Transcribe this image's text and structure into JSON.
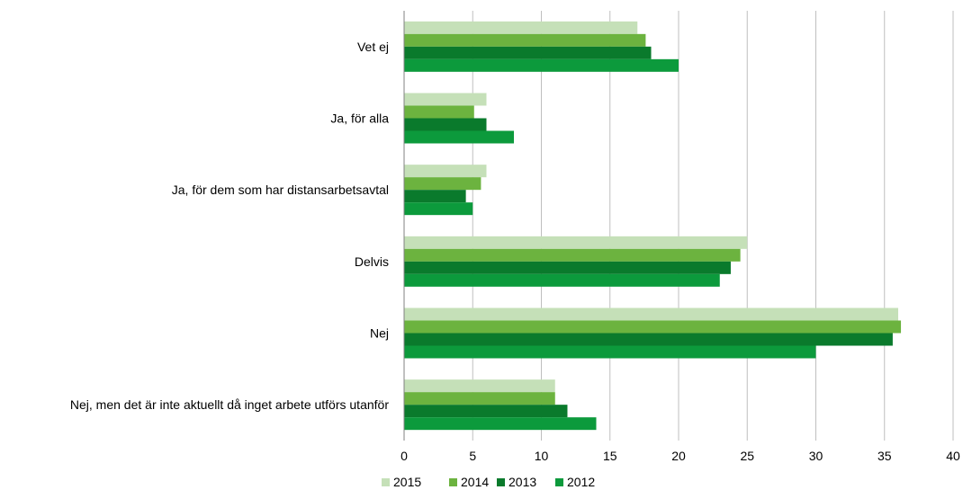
{
  "chart_data": {
    "type": "bar",
    "orientation": "horizontal",
    "title": "",
    "xlabel": "",
    "ylabel": "",
    "xlim": [
      0,
      40
    ],
    "x_ticks": [
      0,
      5,
      10,
      15,
      20,
      25,
      30,
      35,
      40
    ],
    "grid": "vertical",
    "legend_position": "bottom",
    "categories": [
      "Vet ej",
      "Ja, för alla",
      "Ja, för dem som har distansarbetsavtal",
      "Delvis",
      "Nej",
      "Nej, men det är inte aktuellt då inget arbete utförs utanför"
    ],
    "series": [
      {
        "name": "2015",
        "color": "#c5e0b8",
        "values": [
          17,
          6,
          6,
          25,
          36,
          11
        ]
      },
      {
        "name": "2014",
        "color": "#6cb33f",
        "values": [
          17.6,
          5.1,
          5.6,
          24.5,
          36.2,
          11
        ]
      },
      {
        "name": "2013",
        "color": "#0a7a2c",
        "values": [
          18,
          6,
          4.5,
          23.8,
          35.6,
          11.9
        ]
      },
      {
        "name": "2012",
        "color": "#0c9a3c",
        "values": [
          20,
          8,
          5,
          23,
          30,
          14
        ]
      }
    ]
  }
}
